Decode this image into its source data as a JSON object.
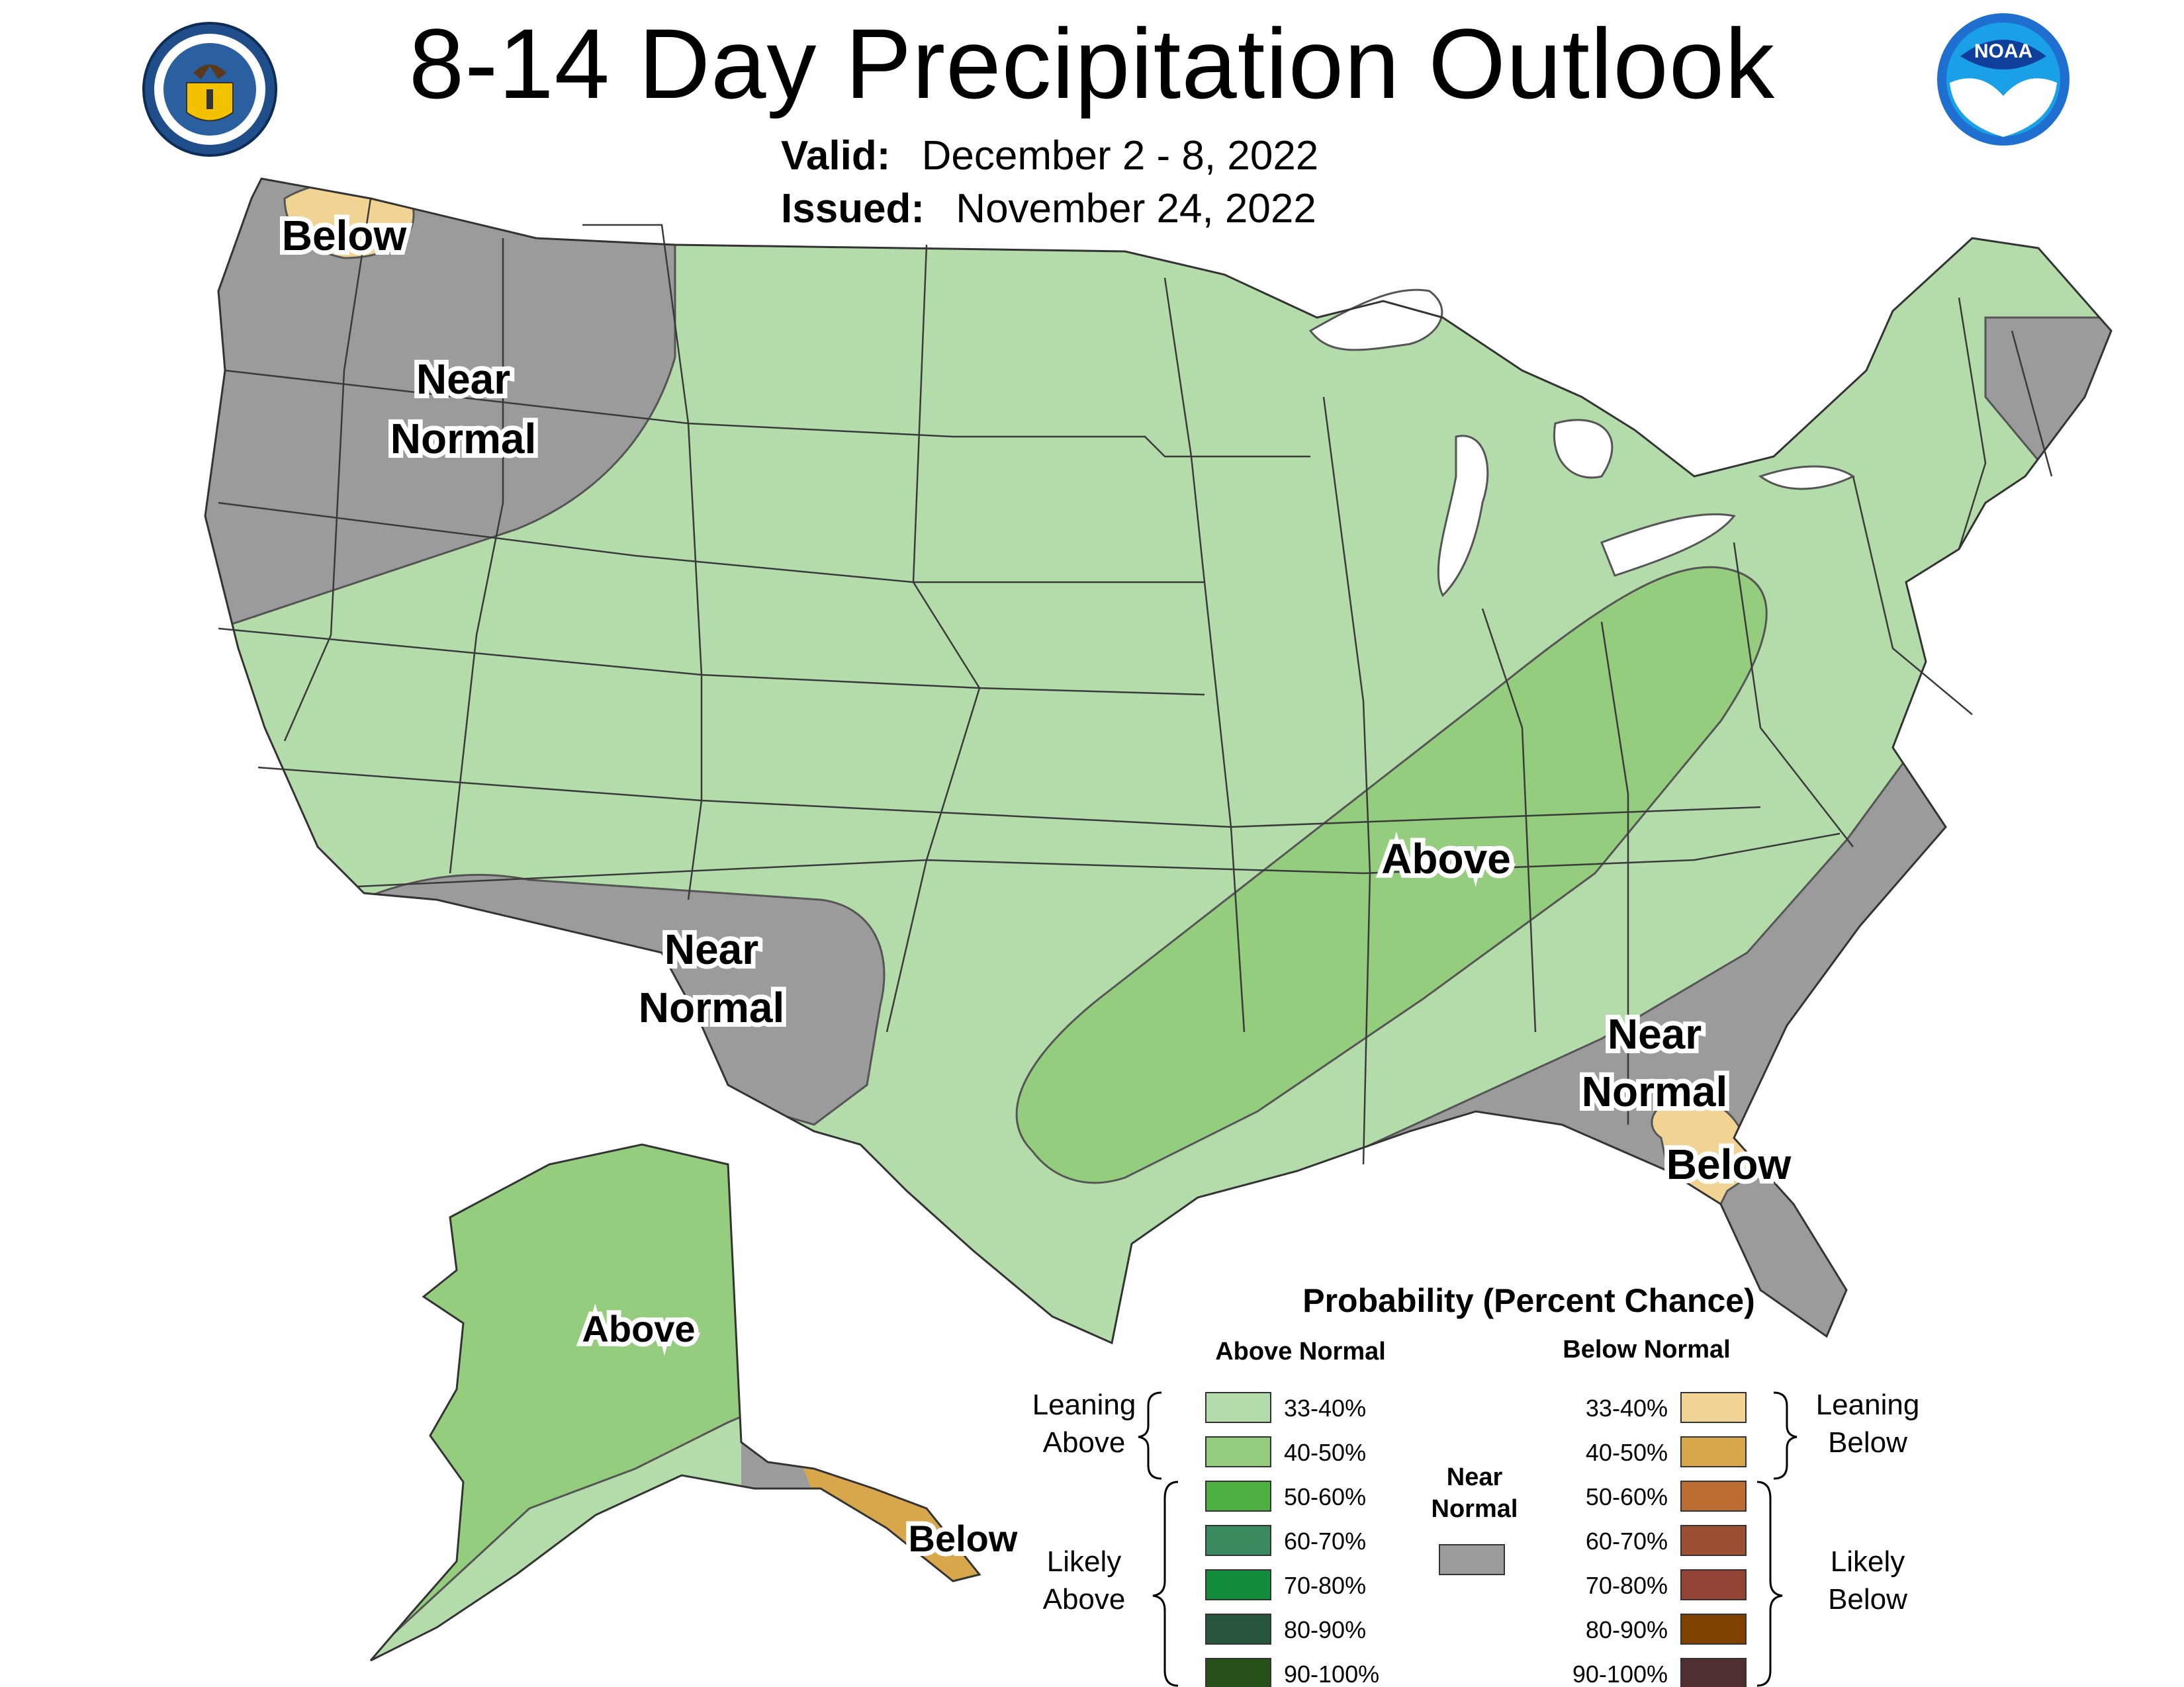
{
  "title": "8-14 Day Precipitation Outlook",
  "valid": {
    "label": "Valid:",
    "value": "December 2 - 8, 2022"
  },
  "issued": {
    "label": "Issued:",
    "value": "November 24, 2022"
  },
  "logos": {
    "commerce": {
      "icon": "department-of-commerce-seal-icon",
      "ring_text": "DEPARTMENT OF COMMERCE · UNITED STATES OF AMERICA"
    },
    "noaa": {
      "icon": "noaa-logo-icon",
      "text": "NOAA"
    }
  },
  "map_labels": {
    "below_nw": "Below",
    "near_normal_nw_1": "Near",
    "near_normal_nw_2": "Normal",
    "near_normal_sw_1": "Near",
    "near_normal_sw_2": "Normal",
    "above_central": "Above",
    "near_normal_se_1": "Near",
    "near_normal_se_2": "Normal",
    "below_fl": "Below",
    "above_ak": "Above",
    "below_ak": "Below"
  },
  "legend": {
    "title": "Probability (Percent Chance)",
    "above_header": "Above Normal",
    "below_header": "Below Normal",
    "near_header_1": "Near",
    "near_header_2": "Normal",
    "leaning_above_1": "Leaning",
    "leaning_above_2": "Above",
    "likely_above_1": "Likely",
    "likely_above_2": "Above",
    "leaning_below_1": "Leaning",
    "leaning_below_2": "Below",
    "likely_below_1": "Likely",
    "likely_below_2": "Below",
    "above": [
      {
        "label": "33-40%",
        "color": "#b3dcaa"
      },
      {
        "label": "40-50%",
        "color": "#94cd7e"
      },
      {
        "label": "50-60%",
        "color": "#4db242"
      },
      {
        "label": "60-70%",
        "color": "#3a8a5f"
      },
      {
        "label": "70-80%",
        "color": "#118d3c"
      },
      {
        "label": "80-90%",
        "color": "#27553b"
      },
      {
        "label": "90-100%",
        "color": "#285119"
      }
    ],
    "below": [
      {
        "label": "33-40%",
        "color": "#f1d393"
      },
      {
        "label": "40-50%",
        "color": "#d8a74b"
      },
      {
        "label": "50-60%",
        "color": "#bb6d33"
      },
      {
        "label": "60-70%",
        "color": "#9b5031"
      },
      {
        "label": "70-80%",
        "color": "#934333"
      },
      {
        "label": "80-90%",
        "color": "#804000"
      },
      {
        "label": "90-100%",
        "color": "#4f2f2f"
      }
    ],
    "near_color": "#9b9b9b"
  },
  "colors": {
    "above_33_40": "#b3dcaa",
    "above_40_50": "#94cd7e",
    "below_33_40": "#f1d393",
    "below_40_50": "#d8a74b",
    "near_normal": "#9b9b9b",
    "state_lines": "#3a3a3a",
    "great_lakes": "#ffffff"
  }
}
